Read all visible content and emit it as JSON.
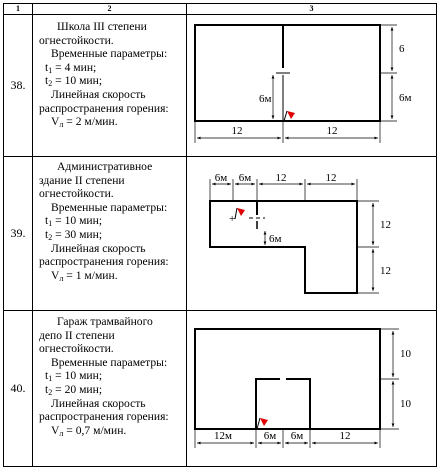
{
  "header": {
    "c1": "1",
    "c2": "2",
    "c3": "3"
  },
  "rows": [
    {
      "number": "38.",
      "title": [
        "Школа III степени",
        "огнестойкости."
      ],
      "params_label": "Временные параметры:",
      "t1": "= 4 мин;",
      "t2": "= 10 мин;",
      "speed_label": [
        "Линейная скорость",
        "распространения горения:"
      ],
      "speed": "= 2 м/мин.",
      "dims": {
        "width_left": "12",
        "width_right": "12",
        "height_top": "6",
        "height_bottom": "6м",
        "inner": "6м"
      }
    },
    {
      "number": "39.",
      "title": [
        "Административное",
        "здание II степени",
        "огнестойкости."
      ],
      "params_label": "Временные параметры:",
      "t1": "= 10 мин;",
      "t2": "= 30 мин;",
      "speed_label": [
        "Линейная скорость",
        "распространения горения:"
      ],
      "speed": "= 1 м/мин.",
      "dims": {
        "top_a": "6м",
        "top_b": "6м",
        "top_c": "12",
        "top_d": "12",
        "right_top": "12",
        "right_bottom": "12",
        "inner": "6м"
      }
    },
    {
      "number": "40.",
      "title": [
        "Гараж трамвайного",
        "депо II степени",
        "огнестойкости."
      ],
      "params_label": "Временные параметры:",
      "t1": "= 10 мин;",
      "t2": "= 20 мин;",
      "speed_label": [
        "Линейная скорость",
        "распространения горения:"
      ],
      "speed": "= 0,7 м/мин.",
      "dims": {
        "bottom_a": "12м",
        "bottom_b": "6м",
        "bottom_c": "6м",
        "bottom_d": "12",
        "right_top": "10",
        "right_bottom": "10"
      }
    }
  ]
}
